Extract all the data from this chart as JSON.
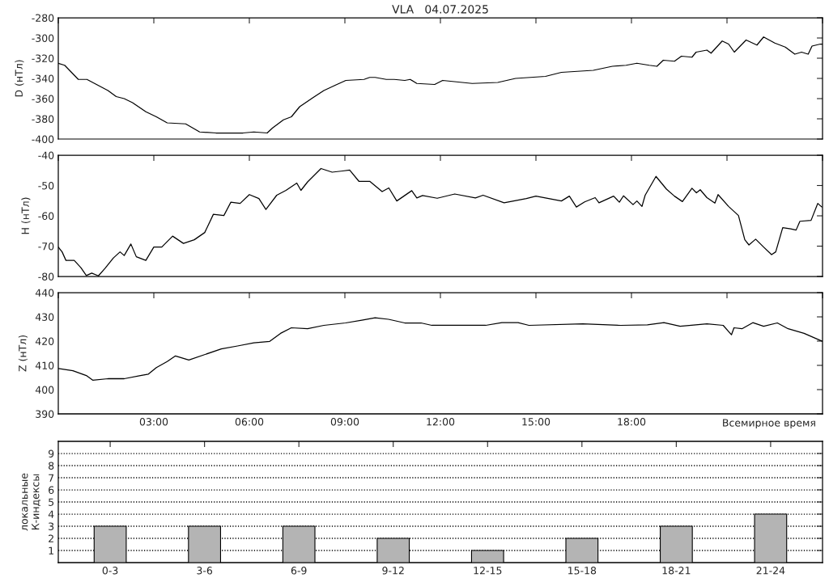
{
  "chart_data": [
    {
      "type": "line",
      "title": "VLA   04.07.2025",
      "ylabel": "D (нТл)",
      "tick_labels": "y",
      "xlim": [
        0,
        24
      ],
      "ylim": [
        -400,
        -280
      ],
      "yticks": [
        -400,
        -380,
        -360,
        -340,
        -320,
        -300,
        -280
      ],
      "xticks": [
        {
          "value": 0,
          "label": null
        },
        {
          "value": 3,
          "label": null
        },
        {
          "value": 6,
          "label": null
        },
        {
          "value": 9,
          "label": null
        },
        {
          "value": 12,
          "label": null
        },
        {
          "value": 15,
          "label": null
        },
        {
          "value": 18,
          "label": null
        },
        {
          "value": 21,
          "label": null
        },
        {
          "value": 24,
          "label": null
        }
      ],
      "series": [
        {
          "color": "#000000",
          "x": [
            0,
            0.2,
            0.63,
            0.9,
            1.56,
            1.82,
            2.07,
            2.33,
            2.75,
            3.08,
            3.42,
            4.0,
            4.44,
            4.95,
            5.8,
            6.14,
            6.56,
            6.73,
            7.07,
            7.32,
            7.58,
            8.0,
            8.34,
            8.68,
            9.03,
            9.6,
            9.78,
            9.95,
            10.3,
            10.55,
            10.88,
            11.05,
            11.26,
            11.82,
            12.07,
            13.0,
            13.8,
            14.36,
            15.3,
            15.8,
            16.3,
            16.8,
            17.4,
            17.83,
            18.17,
            18.56,
            18.8,
            19.0,
            19.35,
            19.57,
            19.9,
            20.03,
            20.37,
            20.5,
            20.85,
            21.05,
            21.23,
            21.6,
            21.94,
            22.15,
            22.5,
            22.83,
            23.13,
            23.34,
            23.55,
            23.67,
            23.93,
            24
          ],
          "values": [
            -325,
            -327,
            -341,
            -341,
            -352,
            -358,
            -360,
            -364,
            -373,
            -378,
            -384,
            -385,
            -393,
            -394,
            -394,
            -393,
            -394,
            -389,
            -381,
            -378,
            -368,
            -359,
            -352,
            -347,
            -342,
            -341,
            -339,
            -339,
            -341,
            -341,
            -342,
            -341,
            -345,
            -346,
            -342,
            -345,
            -344,
            -340,
            -338,
            -334,
            -333,
            -332,
            -328,
            -327,
            -325,
            -327,
            -328,
            -322,
            -323,
            -318,
            -319,
            -314,
            -312,
            -315,
            -303,
            -306,
            -314,
            -302,
            -307,
            -299,
            -305,
            -309,
            -316,
            -314,
            -316,
            -308,
            -306,
            -306
          ]
        }
      ]
    },
    {
      "type": "line",
      "ylabel": "H (нТл)",
      "tick_labels": "y",
      "xlim": [
        0,
        24
      ],
      "ylim": [
        -80,
        -40
      ],
      "yticks": [
        -80,
        -70,
        -60,
        -50,
        -40
      ],
      "xticks": [
        {
          "value": 0,
          "label": null
        },
        {
          "value": 3,
          "label": null
        },
        {
          "value": 6,
          "label": null
        },
        {
          "value": 9,
          "label": null
        },
        {
          "value": 12,
          "label": null
        },
        {
          "value": 15,
          "label": null
        },
        {
          "value": 18,
          "label": null
        },
        {
          "value": 21,
          "label": null
        },
        {
          "value": 24,
          "label": null
        }
      ],
      "series": [
        {
          "color": "#000000",
          "x": [
            0,
            0.12,
            0.24,
            0.5,
            0.71,
            0.88,
            1.05,
            1.26,
            1.47,
            1.73,
            1.94,
            2.07,
            2.28,
            2.45,
            2.75,
            3.0,
            3.25,
            3.59,
            3.93,
            4.27,
            4.6,
            4.87,
            5.2,
            5.42,
            5.71,
            6.0,
            6.3,
            6.52,
            6.86,
            7.15,
            7.49,
            7.62,
            7.83,
            8.25,
            8.6,
            8.93,
            9.15,
            9.44,
            9.78,
            10.17,
            10.38,
            10.63,
            11.1,
            11.26,
            11.44,
            11.9,
            12.45,
            13.1,
            13.34,
            14.0,
            14.7,
            15.0,
            15.8,
            16.05,
            16.27,
            16.53,
            16.86,
            16.98,
            17.44,
            17.62,
            17.75,
            18.05,
            18.17,
            18.33,
            18.43,
            18.77,
            19.1,
            19.35,
            19.6,
            19.9,
            20.04,
            20.16,
            20.37,
            20.62,
            20.72,
            21.05,
            21.36,
            21.56,
            21.69,
            21.9,
            22.15,
            22.4,
            22.53,
            22.75,
            23.0,
            23.17,
            23.29,
            23.64,
            23.85,
            23.98
          ],
          "values": [
            -70.3,
            -71.9,
            -74.7,
            -74.7,
            -77.1,
            -79.7,
            -78.9,
            -79.8,
            -77.3,
            -73.9,
            -71.9,
            -73.1,
            -69.3,
            -73.5,
            -74.7,
            -70.3,
            -70.3,
            -66.7,
            -69.1,
            -67.9,
            -65.5,
            -59.5,
            -59.9,
            -55.5,
            -55.9,
            -53.0,
            -54.3,
            -57.9,
            -53.2,
            -51.6,
            -49.2,
            -51.6,
            -48.8,
            -44.4,
            -45.6,
            -45.2,
            -44.9,
            -48.6,
            -48.6,
            -52.0,
            -50.8,
            -55.1,
            -51.7,
            -54.1,
            -53.3,
            -54.2,
            -52.8,
            -54.1,
            -53.2,
            -55.7,
            -54.3,
            -53.5,
            -55.1,
            -53.5,
            -57.1,
            -55.4,
            -54.0,
            -55.7,
            -53.5,
            -55.5,
            -53.4,
            -56.3,
            -55.1,
            -56.9,
            -53.2,
            -47.0,
            -51.2,
            -53.5,
            -55.3,
            -50.9,
            -52.4,
            -51.4,
            -54.0,
            -55.8,
            -53.0,
            -56.9,
            -59.9,
            -67.9,
            -69.6,
            -67.7,
            -70.3,
            -72.8,
            -71.9,
            -63.9,
            -64.3,
            -64.7,
            -61.8,
            -61.5,
            -55.9,
            -57.1
          ]
        }
      ]
    },
    {
      "type": "line",
      "ylabel": "Z (нТл)",
      "xlabel": "Всемирное время",
      "xlim": [
        0,
        24
      ],
      "ylim": [
        390,
        440
      ],
      "yticks": [
        390,
        400,
        410,
        420,
        430,
        440
      ],
      "xticks": [
        {
          "value": 0,
          "label": null
        },
        {
          "value": 3,
          "label": "03:00"
        },
        {
          "value": 6,
          "label": "06:00"
        },
        {
          "value": 9,
          "label": "09:00"
        },
        {
          "value": 12,
          "label": "12:00"
        },
        {
          "value": 15,
          "label": "15:00"
        },
        {
          "value": 18,
          "label": "18:00"
        },
        {
          "value": 21,
          "label": null
        },
        {
          "value": 24,
          "label": null
        }
      ],
      "series": [
        {
          "color": "#000000",
          "x": [
            0,
            0.46,
            0.88,
            1.08,
            1.56,
            2.07,
            2.58,
            2.83,
            3.08,
            3.42,
            3.68,
            4.1,
            4.61,
            5.12,
            5.63,
            6.14,
            6.64,
            6.98,
            7.32,
            7.83,
            8.34,
            9.02,
            9.53,
            9.95,
            10.37,
            10.88,
            11.39,
            11.73,
            13.42,
            13.93,
            14.44,
            14.78,
            16.47,
            17.66,
            18.5,
            19.02,
            19.53,
            20.37,
            20.88,
            21.14,
            21.22,
            21.47,
            21.81,
            22.15,
            22.58,
            22.92,
            23.42,
            23.93,
            24
          ],
          "values": [
            408.7,
            407.8,
            405.8,
            403.9,
            404.5,
            404.5,
            405.8,
            406.4,
            409.1,
            411.6,
            413.9,
            412.2,
            414.5,
            416.8,
            418.0,
            419.3,
            419.9,
            423.2,
            425.5,
            425.1,
            426.5,
            427.5,
            428.6,
            429.6,
            429.0,
            427.5,
            427.5,
            426.5,
            426.5,
            427.6,
            427.6,
            426.5,
            427.1,
            426.5,
            426.7,
            427.6,
            426.1,
            427.1,
            426.5,
            422.6,
            425.5,
            425.1,
            427.6,
            426.1,
            427.5,
            425.1,
            423.2,
            420.3,
            419.9
          ]
        }
      ]
    },
    {
      "type": "bar",
      "ylabel": "локальные\nК-индексы",
      "categories": [
        "0-3",
        "3-6",
        "6-9",
        "9-12",
        "12-15",
        "15-18",
        "18-21",
        "21-24"
      ],
      "values": [
        3,
        3,
        3,
        2,
        1,
        2,
        3,
        4
      ],
      "color": "#b4b4b4",
      "ylim": [
        0,
        10
      ],
      "yticks": [
        1,
        2,
        3,
        4,
        5,
        6,
        7,
        8,
        9
      ],
      "grid": "y"
    }
  ]
}
